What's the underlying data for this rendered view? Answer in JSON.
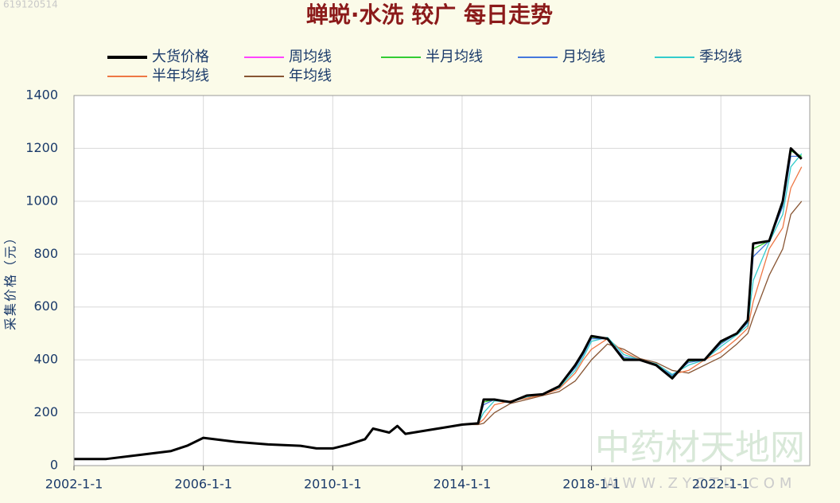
{
  "chart_data": {
    "type": "line",
    "title": "蝉蜕·水洗 较广 每日走势",
    "id_text": "619120514",
    "y_label": "采集价格（元）",
    "watermark": "中药材天地网",
    "watermark_url": "WWW.ZYCTD.COM",
    "x": [
      "2002-1-1",
      "2003-1-1",
      "2004-1-1",
      "2005-1-1",
      "2005-7-1",
      "2006-1-1",
      "2007-1-1",
      "2008-1-1",
      "2009-1-1",
      "2009-7-1",
      "2010-1-1",
      "2010-7-1",
      "2011-1-1",
      "2011-4-1",
      "2011-10-1",
      "2012-1-1",
      "2012-4-1",
      "2013-1-1",
      "2013-7-1",
      "2014-1-1",
      "2014-7-1",
      "2014-9-1",
      "2015-1-1",
      "2015-7-1",
      "2016-1-1",
      "2016-7-1",
      "2017-1-1",
      "2017-7-1",
      "2017-10-1",
      "2018-1-1",
      "2018-7-1",
      "2019-1-1",
      "2019-7-1",
      "2020-1-1",
      "2020-7-1",
      "2021-1-1",
      "2021-7-1",
      "2022-1-1",
      "2022-7-1",
      "2022-11-1",
      "2023-1-1",
      "2023-7-1",
      "2023-12-1",
      "2024-3-1",
      "2024-7-1"
    ],
    "series": [
      {
        "name": "大货价格",
        "color": "#000000",
        "values": [
          25,
          25,
          40,
          55,
          75,
          105,
          90,
          80,
          75,
          65,
          65,
          80,
          100,
          140,
          125,
          150,
          120,
          135,
          145,
          155,
          160,
          250,
          250,
          240,
          265,
          270,
          300,
          380,
          430,
          490,
          480,
          400,
          400,
          380,
          330,
          400,
          400,
          470,
          500,
          550,
          840,
          850,
          1000,
          1200,
          1160
        ]
      },
      {
        "name": "周均线",
        "color": "#ff44ff",
        "values": [
          25,
          25,
          40,
          55,
          75,
          105,
          90,
          80,
          75,
          65,
          65,
          80,
          100,
          140,
          125,
          150,
          120,
          135,
          145,
          155,
          160,
          250,
          250,
          240,
          265,
          270,
          300,
          380,
          430,
          490,
          480,
          400,
          400,
          380,
          330,
          400,
          400,
          470,
          500,
          550,
          840,
          850,
          1000,
          1200,
          1160
        ]
      },
      {
        "name": "半月均线",
        "color": "#33cc33",
        "values": [
          25,
          25,
          40,
          55,
          75,
          105,
          90,
          80,
          75,
          65,
          65,
          80,
          100,
          140,
          125,
          150,
          120,
          135,
          145,
          155,
          160,
          240,
          250,
          240,
          265,
          270,
          300,
          375,
          425,
          485,
          480,
          405,
          400,
          380,
          335,
          395,
          400,
          465,
          500,
          545,
          820,
          850,
          990,
          1190,
          1170
        ]
      },
      {
        "name": "月均线",
        "color": "#4477dd",
        "values": [
          25,
          25,
          40,
          55,
          75,
          105,
          90,
          80,
          75,
          65,
          65,
          80,
          100,
          140,
          125,
          150,
          120,
          135,
          145,
          155,
          160,
          230,
          250,
          240,
          265,
          270,
          300,
          370,
          420,
          480,
          480,
          410,
          400,
          380,
          340,
          390,
          400,
          460,
          500,
          540,
          790,
          850,
          980,
          1170,
          1170
        ]
      },
      {
        "name": "季均线",
        "color": "#33cccc",
        "values": [
          25,
          25,
          40,
          55,
          75,
          105,
          90,
          80,
          75,
          65,
          65,
          80,
          100,
          140,
          125,
          150,
          120,
          135,
          145,
          155,
          160,
          200,
          245,
          240,
          260,
          270,
          295,
          360,
          410,
          470,
          485,
          420,
          400,
          385,
          345,
          380,
          400,
          450,
          495,
          530,
          700,
          845,
          950,
          1130,
          1180
        ]
      },
      {
        "name": "半年均线",
        "color": "#ee7744",
        "values": [
          25,
          25,
          40,
          55,
          75,
          105,
          90,
          80,
          75,
          65,
          65,
          80,
          100,
          140,
          125,
          150,
          120,
          135,
          145,
          155,
          158,
          175,
          230,
          245,
          255,
          268,
          290,
          350,
          400,
          440,
          480,
          430,
          400,
          385,
          345,
          360,
          400,
          430,
          480,
          520,
          620,
          820,
          900,
          1050,
          1130
        ]
      },
      {
        "name": "年均线",
        "color": "#885533",
        "values": [
          25,
          25,
          40,
          55,
          75,
          105,
          90,
          80,
          75,
          65,
          65,
          80,
          100,
          140,
          125,
          150,
          120,
          135,
          145,
          155,
          155,
          160,
          200,
          235,
          250,
          265,
          280,
          320,
          360,
          400,
          460,
          440,
          405,
          390,
          360,
          350,
          380,
          410,
          460,
          500,
          560,
          720,
          820,
          950,
          1000
        ]
      }
    ],
    "xlim": [
      "2002-1-1",
      "2024-10-1"
    ],
    "xticks": [
      "2002-1-1",
      "2006-1-1",
      "2010-1-1",
      "2014-1-1",
      "2018-1-1",
      "2022-1-1"
    ],
    "ylim": [
      0,
      1400
    ],
    "yticks": [
      0,
      200,
      400,
      600,
      800,
      1000,
      1200,
      1400
    ],
    "grid": true
  }
}
